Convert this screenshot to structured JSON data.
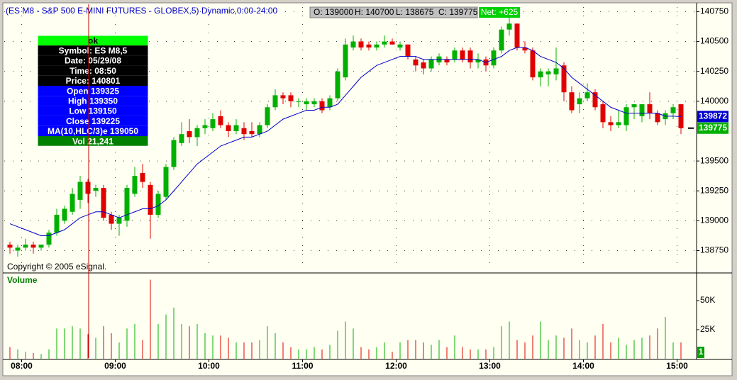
{
  "chart_data": {
    "type": "candlestick",
    "title": "(ES M8 - S&P 500 E-MINI FUTURES - GLOBEX,5) Dynamic,0:00-24:00",
    "summary": [
      "O: 139000",
      "H: 140700",
      "L: 138675",
      "C: 139775"
    ],
    "net": "Net: +625",
    "copyright": "Copyright © 2005 eSignal.",
    "up_color": "#00b000",
    "down_color": "#e00000",
    "open": [
      138800,
      138750,
      138775,
      138800,
      138775,
      138800,
      138900,
      139000,
      139075,
      139175,
      139325,
      139250,
      139275,
      139050,
      138975,
      139000,
      139225,
      139400,
      139300,
      139050,
      139200,
      139450,
      139650,
      139750,
      139700,
      139775,
      139775,
      139875,
      139800,
      139750,
      139775,
      139750,
      139725,
      139800,
      139950,
      140050,
      140050,
      140000,
      139975,
      139975,
      140000,
      139950,
      140025,
      140200,
      140450,
      140500,
      140475,
      140450,
      140475,
      140500,
      140450,
      140475,
      140350,
      140325,
      140275,
      140325,
      140350,
      140350,
      140425,
      140425,
      140325,
      140350,
      140300,
      140425,
      140600,
      140650,
      140450,
      140425,
      140200,
      140225,
      140225,
      140300,
      140075,
      139975,
      140025,
      140075,
      139975,
      139825,
      139800,
      139800,
      139950,
      139875,
      139975,
      139900,
      139850,
      139900,
      139975
    ],
    "high": [
      138825,
      138800,
      138850,
      138825,
      138800,
      138925,
      139100,
      139125,
      139275,
      139375,
      139350,
      139300,
      139300,
      139075,
      139050,
      139300,
      139450,
      139475,
      139325,
      139250,
      139475,
      139700,
      139825,
      139850,
      139800,
      139850,
      139900,
      139925,
      139825,
      139850,
      139825,
      139825,
      139825,
      139975,
      140100,
      140075,
      140075,
      140025,
      140025,
      140025,
      140025,
      140050,
      140275,
      140525,
      140550,
      140525,
      140500,
      140500,
      140550,
      140525,
      140500,
      140475,
      140375,
      140350,
      140375,
      140400,
      140375,
      140450,
      140450,
      140450,
      140400,
      140375,
      140450,
      140625,
      140700,
      140650,
      140500,
      140450,
      140275,
      140275,
      140450,
      140325,
      140125,
      140075,
      140150,
      140100,
      140000,
      139875,
      139925,
      139975,
      139975,
      139975,
      140075,
      139925,
      139925,
      139975,
      139975
    ],
    "low": [
      138725,
      138700,
      138750,
      138725,
      138750,
      138775,
      138875,
      138975,
      139050,
      139100,
      139150,
      139200,
      139000,
      138925,
      138875,
      138950,
      139200,
      139275,
      138850,
      139025,
      139175,
      139425,
      139625,
      139650,
      139625,
      139725,
      139750,
      139775,
      139700,
      139725,
      139675,
      139700,
      139700,
      139775,
      139925,
      139975,
      139950,
      139950,
      139925,
      139950,
      139900,
      139925,
      140000,
      140175,
      140425,
      140425,
      140425,
      140425,
      140450,
      140475,
      140425,
      140350,
      140250,
      140225,
      140250,
      140300,
      140300,
      140325,
      140325,
      140275,
      140275,
      140250,
      140275,
      140400,
      140550,
      140425,
      140400,
      140175,
      140125,
      140125,
      140175,
      140000,
      139900,
      139900,
      140000,
      139925,
      139775,
      139750,
      139775,
      139750,
      139850,
      139825,
      139850,
      139800,
      139800,
      139850,
      139725
    ],
    "close": [
      138775,
      138775,
      138800,
      138775,
      138800,
      138900,
      139050,
      139100,
      139225,
      139325,
      139225,
      139275,
      139025,
      138975,
      139025,
      139275,
      139375,
      139325,
      139050,
      139225,
      139450,
      139675,
      139725,
      139700,
      139775,
      139800,
      139850,
      139800,
      139750,
      139800,
      139725,
      139725,
      139800,
      139950,
      140050,
      140025,
      140000,
      140000,
      140000,
      140000,
      139925,
      140025,
      140250,
      140475,
      140500,
      140450,
      140450,
      140475,
      140500,
      140475,
      140475,
      140375,
      140300,
      140275,
      140350,
      140375,
      140325,
      140425,
      140350,
      140325,
      140350,
      140300,
      140425,
      140600,
      140650,
      140450,
      140425,
      140200,
      140250,
      140250,
      140275,
      140075,
      139925,
      140025,
      140075,
      139950,
      139825,
      139800,
      139825,
      139950,
      139975,
      139975,
      139900,
      139825,
      139900,
      139950,
      139775
    ],
    "ma": {
      "name": "MA(10,HLC/3)e",
      "color": "#0000cc",
      "values": [
        138975,
        138950,
        138925,
        138900,
        138875,
        138875,
        138900,
        138925,
        138975,
        139025,
        139050,
        139075,
        139075,
        139050,
        139025,
        139050,
        139075,
        139100,
        139100,
        139125,
        139175,
        139250,
        139325,
        139400,
        139475,
        139525,
        139575,
        139625,
        139650,
        139675,
        139700,
        139700,
        139725,
        139750,
        139800,
        139850,
        139875,
        139900,
        139925,
        139925,
        139950,
        139950,
        139975,
        140050,
        140125,
        140200,
        140250,
        140300,
        140325,
        140350,
        140375,
        140375,
        140375,
        140350,
        140350,
        140350,
        140350,
        140350,
        140350,
        140350,
        140350,
        140325,
        140350,
        140375,
        140425,
        140450,
        140450,
        140425,
        140375,
        140350,
        140325,
        140275,
        140200,
        140150,
        140100,
        140050,
        140000,
        139950,
        139925,
        139900,
        139900,
        139900,
        139900,
        139900,
        139875,
        139875,
        139872
      ]
    },
    "ylim": [
      138575,
      140800
    ],
    "yticks": [
      138750,
      139000,
      139250,
      139500,
      140000,
      140250,
      140500,
      140750
    ],
    "xticks": [
      {
        "value": 1.5,
        "label": "08:00"
      },
      {
        "value": 13.5,
        "label": "09:00"
      },
      {
        "value": 25.5,
        "label": "10:00"
      },
      {
        "value": 37.5,
        "label": "11:00"
      },
      {
        "value": 49.5,
        "label": "12:00"
      },
      {
        "value": 61.5,
        "label": "13:00"
      },
      {
        "value": 73.5,
        "label": "14:00"
      },
      {
        "value": 85.5,
        "label": "15:00"
      }
    ],
    "grid": true,
    "volume": {
      "title": "Volume",
      "marker": "1",
      "ylim": [
        0,
        72000
      ],
      "yticks": [
        {
          "value": 25000,
          "label": "25K"
        },
        {
          "value": 50000,
          "label": "50K"
        }
      ],
      "values": [
        10000,
        8000,
        6000,
        5000,
        4000,
        8000,
        26000,
        26000,
        28000,
        26000,
        21241,
        18000,
        28000,
        22000,
        14000,
        26000,
        30000,
        16000,
        68000,
        30000,
        38000,
        44000,
        30000,
        28000,
        30000,
        22000,
        20000,
        20000,
        18000,
        14000,
        14000,
        14000,
        16000,
        28000,
        22000,
        14000,
        10000,
        8000,
        8000,
        10000,
        8000,
        12000,
        24000,
        32000,
        26000,
        10000,
        8000,
        10000,
        14000,
        6000,
        14000,
        16000,
        16000,
        14000,
        12000,
        16000,
        10000,
        20000,
        10000,
        8000,
        8000,
        8000,
        10000,
        28000,
        32000,
        16000,
        14000,
        20000,
        32000,
        16000,
        20000,
        18000,
        26000,
        16000,
        14000,
        20000,
        30000,
        14000,
        18000,
        12000,
        16000,
        18000,
        20000,
        26000,
        36000,
        14000,
        14000
      ]
    },
    "info_box": {
      "status": "ok",
      "black_rows": [
        "Symbol: ES M8,5",
        "Date: 05/29/08",
        "Time: 08:50",
        "Price: 140801"
      ],
      "blue_rows": [
        "Open 139325",
        "High 139350",
        "Low 139150",
        "Close 139225",
        "MA(10,HLC/3)e 139050"
      ],
      "volume_row": "Vol 21,241"
    }
  }
}
